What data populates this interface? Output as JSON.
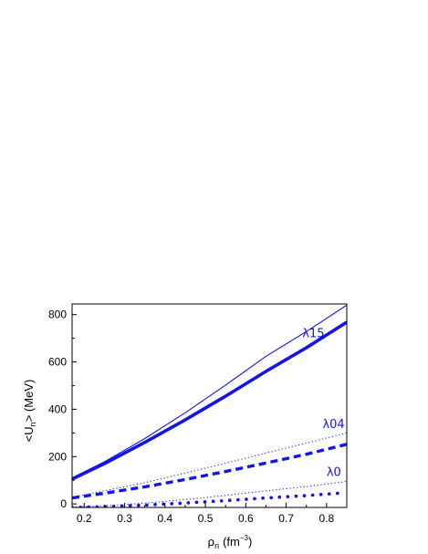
{
  "chart_data": {
    "type": "line",
    "xlabel": {
      "main": "ρ",
      "sub": "n",
      "unit_open": "(fm",
      "unit_sup": "−3",
      "unit_close": ")"
    },
    "ylabel": {
      "open": "<U",
      "sub": "n",
      "close": "> (MeV)"
    },
    "xlim": [
      0.17,
      0.85
    ],
    "ylim": [
      -15,
      845
    ],
    "xticks": [
      0.2,
      0.3,
      0.4,
      0.5,
      0.6,
      0.7,
      0.8
    ],
    "xtick_labels": [
      "0.2",
      "0.3",
      "0.4",
      "0.5",
      "0.6",
      "0.7",
      "0.8"
    ],
    "yticks": [
      0,
      200,
      400,
      600,
      800
    ],
    "ytick_labels": [
      "0",
      "200",
      "400",
      "600",
      "800"
    ],
    "grid": false,
    "legend": "none",
    "series": [
      {
        "key": "l15_thin",
        "style": "thin-solid",
        "color": "#1414e6",
        "x": [
          0.17,
          0.25,
          0.35,
          0.45,
          0.55,
          0.65,
          0.75,
          0.85
        ],
        "y": [
          110,
          178,
          276,
          385,
          502,
          624,
          728,
          840
        ]
      },
      {
        "key": "l15_thick",
        "style": "thick-solid",
        "color": "#1414e6",
        "x": [
          0.17,
          0.25,
          0.35,
          0.45,
          0.55,
          0.65,
          0.75,
          0.85
        ],
        "y": [
          105,
          170,
          260,
          355,
          455,
          560,
          660,
          768
        ]
      },
      {
        "key": "l04_thin",
        "style": "thin-dotted",
        "color": "#1414e6",
        "x": [
          0.17,
          0.25,
          0.35,
          0.45,
          0.55,
          0.65,
          0.75,
          0.85
        ],
        "y": [
          28,
          55,
          90,
          130,
          172,
          215,
          257,
          300
        ]
      },
      {
        "key": "l04_thick",
        "style": "thick-dashed",
        "color": "#1414e6",
        "x": [
          0.17,
          0.25,
          0.35,
          0.45,
          0.55,
          0.65,
          0.75,
          0.85
        ],
        "y": [
          25,
          45,
          72,
          103,
          137,
          173,
          210,
          252
        ]
      },
      {
        "key": "l0_thin",
        "style": "thin-dotted",
        "color": "#1414e6",
        "x": [
          0.17,
          0.25,
          0.35,
          0.45,
          0.55,
          0.65,
          0.75,
          0.85
        ],
        "y": [
          -14,
          -8,
          3,
          18,
          36,
          55,
          73,
          95
        ]
      },
      {
        "key": "l0_thick",
        "style": "thick-dotted",
        "color": "#1414e6",
        "x": [
          0.17,
          0.25,
          0.35,
          0.45,
          0.55,
          0.65,
          0.75,
          0.83
        ],
        "y": [
          -15,
          -12,
          -5,
          4,
          14,
          25,
          35,
          45
        ]
      }
    ],
    "annotations": [
      {
        "text": "λ15",
        "x": 0.74,
        "y": 705
      },
      {
        "text": "λ04",
        "x": 0.79,
        "y": 320
      },
      {
        "text": "λ0",
        "x": 0.8,
        "y": 118
      }
    ]
  }
}
